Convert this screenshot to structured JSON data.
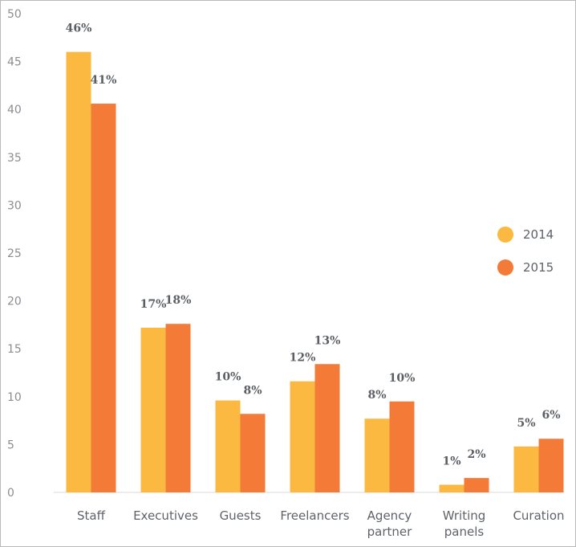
{
  "chart_data": {
    "type": "bar",
    "title": "",
    "xlabel": "",
    "ylabel": "",
    "ylim": [
      0,
      50
    ],
    "yticks": [
      0,
      5,
      10,
      15,
      20,
      25,
      30,
      35,
      40,
      45,
      50
    ],
    "grid": false,
    "legend_position": "right",
    "categories": [
      [
        "Staff"
      ],
      [
        "Executives"
      ],
      [
        "Guests"
      ],
      [
        "Freelancers"
      ],
      [
        "Agency",
        "partner"
      ],
      [
        "Writing",
        "panels"
      ],
      [
        "Curation"
      ]
    ],
    "series": [
      {
        "name": "2014",
        "color": "#fcb941",
        "values": [
          46,
          17.2,
          9.6,
          11.6,
          7.7,
          0.8,
          4.8
        ],
        "labels": [
          "46%",
          "17%",
          "10%",
          "12%",
          "8%",
          "1%",
          "5%"
        ]
      },
      {
        "name": "2015",
        "color": "#f47a38",
        "values": [
          40.6,
          17.6,
          8.2,
          13.4,
          9.5,
          1.5,
          5.6
        ],
        "labels": [
          "41%",
          "18%",
          "8%",
          "13%",
          "10%",
          "2%",
          "6%"
        ]
      }
    ]
  }
}
